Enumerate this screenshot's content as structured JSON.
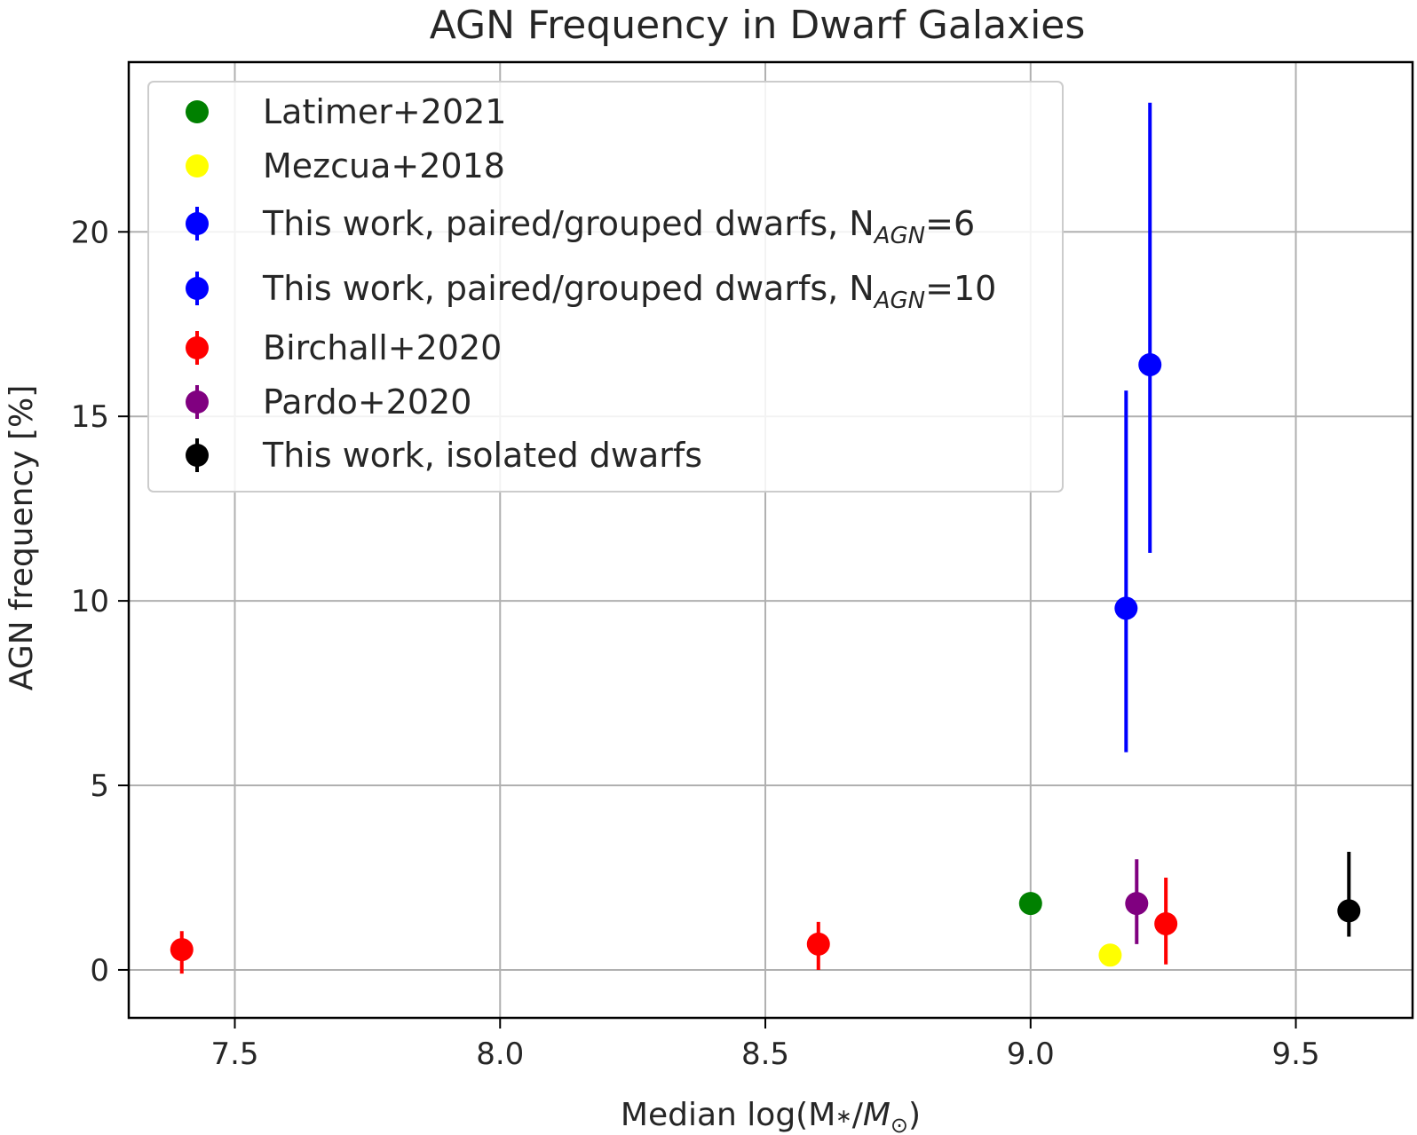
{
  "chart_data": {
    "type": "scatter",
    "title": "AGN Frequency in Dwarf Galaxies",
    "xlabel": "Median log(M∗/M⊙)",
    "xlabel_parts": {
      "prefix": "Median log(M",
      "star": "∗",
      "slash": "/",
      "m": "M",
      "sun": "⊙",
      "close": ")"
    },
    "ylabel": "AGN frequency [%]",
    "xlim": [
      7.3,
      9.72
    ],
    "ylim": [
      -1.3,
      24.6
    ],
    "xticks": [
      7.5,
      8.0,
      8.5,
      9.0,
      9.5
    ],
    "xtick_labels": [
      "7.5",
      "8.0",
      "8.5",
      "9.0",
      "9.5"
    ],
    "yticks": [
      0,
      5,
      10,
      15,
      20
    ],
    "ytick_labels": [
      "0",
      "5",
      "10",
      "15",
      "20"
    ],
    "grid": true,
    "legend_position": "upper-left",
    "series": [
      {
        "name": "Latimer+2021",
        "color": "#008000",
        "errorbar": false,
        "points": [
          {
            "x": 9.0,
            "y": 1.8
          }
        ]
      },
      {
        "name": "Mezcua+2018",
        "color": "#ffff00",
        "errorbar": false,
        "points": [
          {
            "x": 9.15,
            "y": 0.4
          }
        ]
      },
      {
        "name": "This work, paired/grouped dwarfs, NAGN=6",
        "color": "#0000ff",
        "errorbar": true,
        "legend_parts": {
          "text": "This work, paired/grouped dwarfs, N",
          "sub": "AGN",
          "tail": "=6"
        },
        "points": [
          {
            "x": 9.18,
            "y": 9.8,
            "ylow": 5.9,
            "yhigh": 15.7
          }
        ]
      },
      {
        "name": "This work, paired/grouped dwarfs, NAGN=10",
        "color": "#0000ff",
        "errorbar": true,
        "legend_parts": {
          "text": "This work, paired/grouped dwarfs, N",
          "sub": "AGN",
          "tail": "=10"
        },
        "points": [
          {
            "x": 9.225,
            "y": 16.4,
            "ylow": 11.3,
            "yhigh": 23.5
          }
        ]
      },
      {
        "name": "Birchall+2020",
        "color": "#ff0000",
        "errorbar": true,
        "points": [
          {
            "x": 7.4,
            "y": 0.55,
            "ylow": -0.1,
            "yhigh": 1.05
          },
          {
            "x": 8.6,
            "y": 0.7,
            "ylow": 0.0,
            "yhigh": 1.3
          },
          {
            "x": 9.255,
            "y": 1.25,
            "ylow": 0.15,
            "yhigh": 2.5
          }
        ]
      },
      {
        "name": "Pardo+2020",
        "color": "#800080",
        "errorbar": true,
        "points": [
          {
            "x": 9.2,
            "y": 1.8,
            "ylow": 0.7,
            "yhigh": 3.0
          }
        ]
      },
      {
        "name": "This work, isolated dwarfs",
        "color": "#000000",
        "errorbar": true,
        "points": [
          {
            "x": 9.6,
            "y": 1.6,
            "ylow": 0.9,
            "yhigh": 3.2
          }
        ]
      }
    ]
  }
}
